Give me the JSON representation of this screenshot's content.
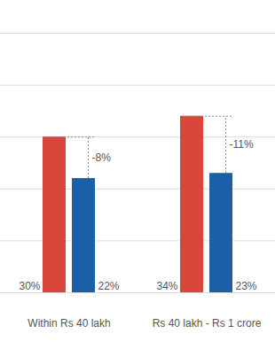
{
  "chart_data": {
    "type": "bar",
    "categories": [
      "Within Rs 40 lakh",
      "Rs 40 lakh - Rs 1 crore"
    ],
    "series": [
      {
        "color": "#d9463b",
        "values": [
          30,
          34
        ],
        "value_labels": [
          "30%",
          "34%"
        ]
      },
      {
        "color": "#1a5fa8",
        "values": [
          22,
          23
        ],
        "value_labels": [
          "22%",
          "23%"
        ]
      }
    ],
    "changes": [
      -8,
      -11
    ],
    "change_labels": [
      "-8%",
      "-11%"
    ],
    "ylim": [
      0,
      50
    ],
    "yticks": [
      0,
      10,
      20,
      30,
      40,
      50
    ],
    "grid": true,
    "data_labels": true,
    "tick_labels": "x"
  }
}
